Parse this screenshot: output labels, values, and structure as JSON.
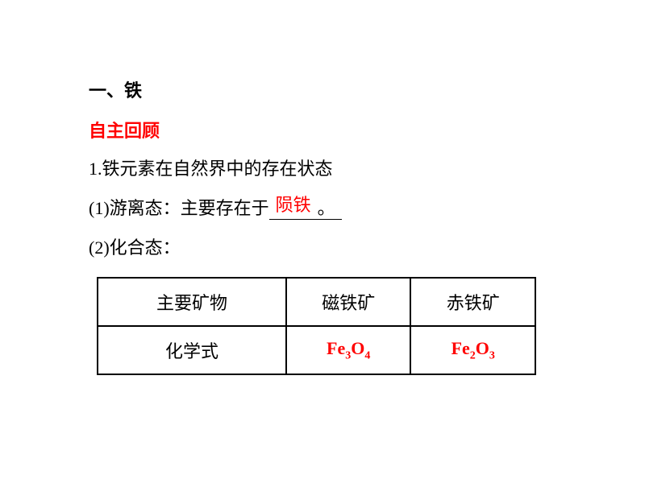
{
  "section": {
    "title": "一、铁"
  },
  "review": {
    "label": "自主回顾"
  },
  "intro": {
    "line1": "1.铁元素在自然界中的存在状态",
    "line2_prefix": "(1)游离态：主要存在于",
    "line2_answer": "陨铁",
    "line2_suffix": "。",
    "line3": "(2)化合态："
  },
  "table": {
    "headers": {
      "col1": "主要矿物",
      "col2": "磁铁矿",
      "col3": "赤铁矿"
    },
    "row1": {
      "label": "化学式",
      "val2_base": "Fe",
      "val2_sub1": "3",
      "val2_mid": "O",
      "val2_sub2": "4",
      "val3_base": "Fe",
      "val3_sub1": "2",
      "val3_mid": "O",
      "val3_sub2": "3"
    }
  },
  "colors": {
    "text": "#000000",
    "highlight": "#ff0000",
    "background": "#ffffff",
    "border": "#000000"
  }
}
